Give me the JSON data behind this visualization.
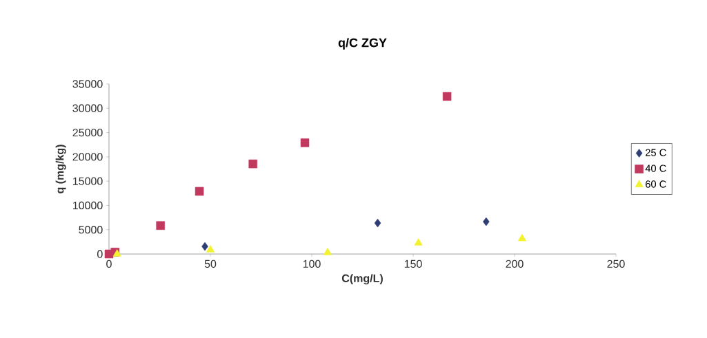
{
  "chart_data": {
    "type": "scatter",
    "title": "q/C   ZGY",
    "xlabel": "C(mg/L)",
    "ylabel": "q (mg/kg)",
    "xlim": [
      0,
      250
    ],
    "xticks": [
      0,
      50,
      100,
      150,
      200,
      250
    ],
    "ylim": [
      0,
      35000
    ],
    "yticks": [
      0,
      5000,
      10000,
      15000,
      20000,
      25000,
      30000,
      35000
    ],
    "legend": "right",
    "grid": false,
    "series": [
      {
        "name": "25 C",
        "color": "#2e3d73",
        "marker": "diamond",
        "x": [
          47.3,
          132.5,
          186
        ],
        "values": [
          1550,
          6370,
          6650
        ]
      },
      {
        "name": "40 C",
        "color": "#c2395f",
        "marker": "square",
        "x": [
          0,
          3,
          25.4,
          44.6,
          71,
          96.6,
          166.7
        ],
        "values": [
          0,
          400,
          5850,
          12900,
          18550,
          22900,
          32430
        ]
      },
      {
        "name": "60 C",
        "color": "#f2f230",
        "marker": "triangle",
        "x": [
          4,
          50,
          107.8,
          152.6,
          203.7
        ],
        "values": [
          0,
          850,
          300,
          2260,
          3160
        ]
      }
    ]
  }
}
